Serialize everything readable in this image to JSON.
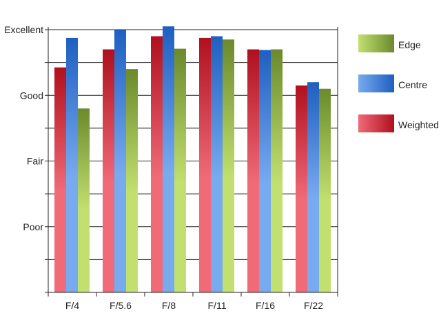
{
  "chart_data": {
    "type": "bar",
    "title": "",
    "xlabel": "",
    "ylabel": "",
    "categories": [
      "F/4",
      "F/5.6",
      "F/8",
      "F/11",
      "F/16",
      "F/22"
    ],
    "y_scale": "qualitative rating 0 (bottom) to 8 (Excellent)",
    "ylim": [
      0,
      8
    ],
    "y_ticks": [
      {
        "value": 2,
        "label": "Poor"
      },
      {
        "value": 4,
        "label": "Fair"
      },
      {
        "value": 6,
        "label": "Good"
      },
      {
        "value": 8,
        "label": "Excellent"
      }
    ],
    "grid": "horizontal lines every 1 unit",
    "series": [
      {
        "name": "Weighted",
        "color_light": "#f06a78",
        "color_dark": "#b0101e",
        "values": [
          6.85,
          7.4,
          7.8,
          7.75,
          7.4,
          6.3
        ]
      },
      {
        "name": "Centre",
        "color_light": "#78aaf0",
        "color_dark": "#1f5fc0",
        "values": [
          7.75,
          8.0,
          8.1,
          7.8,
          7.38,
          6.4
        ]
      },
      {
        "name": "Edge",
        "color_light": "#c2e070",
        "color_dark": "#6a8a2c",
        "values": [
          5.6,
          6.8,
          7.42,
          7.7,
          7.4,
          6.2
        ]
      }
    ],
    "legend": {
      "placement": "right",
      "order": [
        "Edge",
        "Centre",
        "Weighted"
      ]
    }
  }
}
